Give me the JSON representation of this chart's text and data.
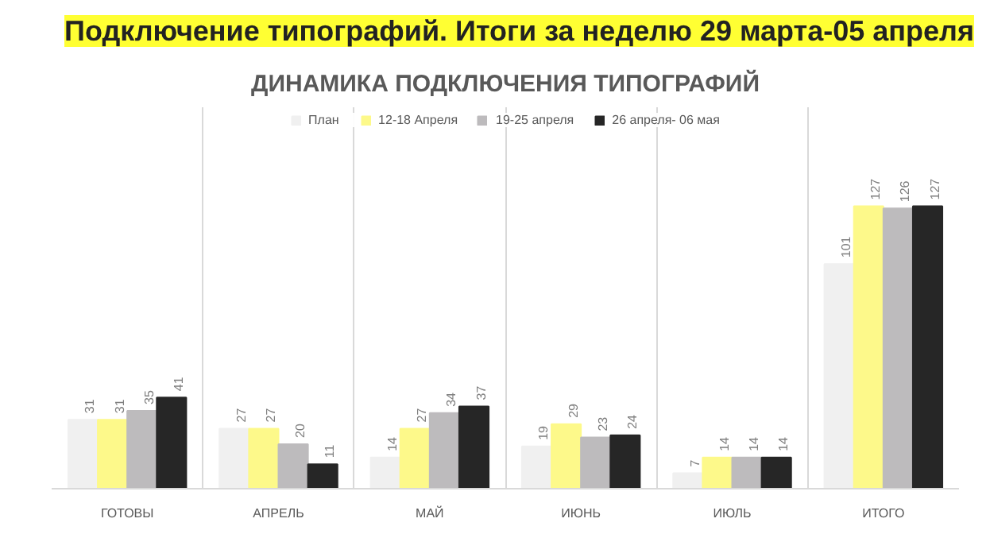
{
  "chart_data": {
    "type": "bar",
    "title": "Подключение типографий. Итоги за неделю 29 марта-05 апреля",
    "subtitle": "ДИНАМИКА ПОДКЛЮЧЕНИЯ ТИПОГРАФИЙ",
    "categories": [
      "ГОТОВЫ",
      "АПРЕЛЬ",
      "МАЙ",
      "ИЮНЬ",
      "ИЮЛЬ",
      "ИТОГО"
    ],
    "series": [
      {
        "name": "План",
        "color": "#f0f0f0",
        "values": [
          31,
          27,
          14,
          19,
          7,
          101
        ]
      },
      {
        "name": "12-18 Апреля",
        "color": "#fdf98a",
        "values": [
          31,
          27,
          27,
          29,
          14,
          127
        ]
      },
      {
        "name": "19-25 апреля",
        "color": "#bdbbbd",
        "values": [
          35,
          20,
          34,
          23,
          14,
          126
        ]
      },
      {
        "name": "26 апреля- 06 мая",
        "color": "#262626",
        "values": [
          41,
          11,
          37,
          24,
          14,
          127
        ]
      }
    ],
    "data_labels": true,
    "grid": "x",
    "legend": "top"
  }
}
